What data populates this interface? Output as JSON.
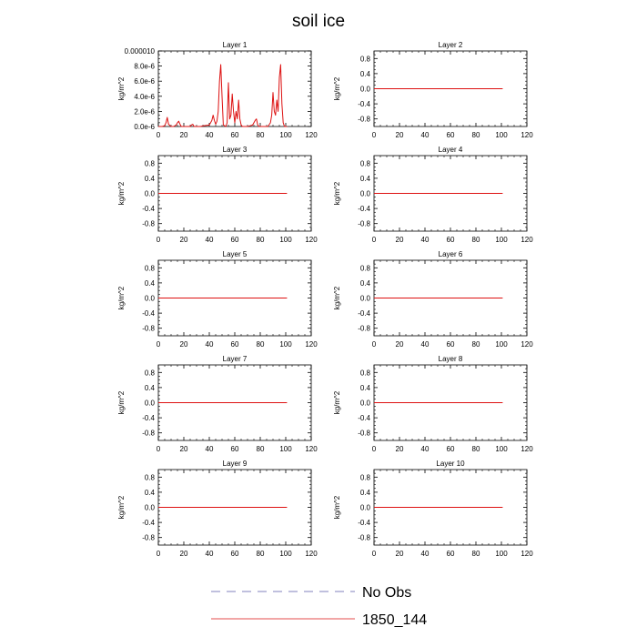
{
  "figure": {
    "title": "soil ice"
  },
  "legend": {
    "entries": [
      {
        "label": "No Obs",
        "color": "#5a5aa8",
        "style": "dashed"
      },
      {
        "label": "1850_144",
        "color": "#dd1111",
        "style": "solid"
      }
    ]
  },
  "chart_data": [
    {
      "type": "line",
      "title": "Layer 1",
      "ylabel": "kg/m^2",
      "xlim": [
        0,
        120
      ],
      "ylim": [
        0,
        1e-05
      ],
      "xticks": [
        0,
        20,
        40,
        60,
        80,
        100,
        120
      ],
      "yticks": [
        0,
        2e-06,
        4e-06,
        6e-06,
        8e-06,
        1e-05
      ],
      "ytick_labels": [
        "0.0e-6",
        "2.0e-6",
        "4.0e-6",
        "6.0e-6",
        "8.0e-6",
        "0.000010"
      ],
      "series": [
        {
          "name": "1850_144",
          "color": "#dd1111",
          "x": [
            0,
            3,
            5,
            6,
            7,
            8,
            10,
            12,
            14,
            15,
            16,
            17,
            18,
            20,
            22,
            25,
            26,
            27,
            28,
            30,
            33,
            36,
            40,
            42,
            43,
            44,
            45,
            46,
            47,
            48,
            49,
            50,
            51,
            53,
            54,
            55,
            56,
            57,
            58,
            59,
            60,
            61,
            62,
            63,
            64,
            65,
            66,
            67,
            68,
            70,
            72,
            74,
            76,
            77,
            78,
            79,
            80,
            82,
            84,
            86,
            88,
            89,
            90,
            91,
            92,
            93,
            94,
            95,
            96,
            97,
            98,
            99,
            100,
            101
          ],
          "y": [
            0,
            0,
            1e-07,
            5e-07,
            1.2e-06,
            3e-07,
            0,
            0,
            2e-07,
            5e-07,
            7e-07,
            3e-07,
            0,
            0,
            0,
            0,
            2e-07,
            3e-07,
            0,
            0,
            0,
            1e-07,
            2e-07,
            8e-07,
            1.5e-06,
            8e-07,
            3e-07,
            7e-07,
            2e-06,
            6e-06,
            8.2e-06,
            4e-06,
            2e-07,
            0,
            5e-07,
            5.8e-06,
            1e-06,
            1.5e-06,
            4.3e-06,
            2e-06,
            5e-07,
            2e-06,
            1e-06,
            3.5e-06,
            1e-06,
            2e-07,
            0,
            0,
            0,
            0,
            1e-07,
            2e-07,
            8e-07,
            1e-06,
            2e-07,
            0,
            0,
            0,
            0,
            0,
            5e-07,
            1.5e-06,
            4.5e-06,
            2e-06,
            1.5e-06,
            3.5e-06,
            2e-06,
            6.5e-06,
            8.2e-06,
            3e-06,
            5e-07,
            0,
            0,
            0
          ]
        }
      ]
    },
    {
      "type": "line",
      "title": "Layer 2",
      "ylabel": "kg/m^2",
      "xlim": [
        0,
        120
      ],
      "ylim": [
        -1,
        1
      ],
      "xticks": [
        0,
        20,
        40,
        60,
        80,
        100,
        120
      ],
      "yticks": [
        -0.8,
        -0.4,
        0,
        0.4,
        0.8
      ],
      "ytick_labels": [
        "-0.8",
        "-0.4",
        "0.0",
        "0.4",
        "0.8"
      ],
      "series": [
        {
          "name": "1850_144",
          "color": "#dd1111",
          "x": [
            0,
            101
          ],
          "y": [
            0,
            0
          ]
        }
      ]
    },
    {
      "type": "line",
      "title": "Layer 3",
      "ylabel": "kg/m^2",
      "xlim": [
        0,
        120
      ],
      "ylim": [
        -1,
        1
      ],
      "xticks": [
        0,
        20,
        40,
        60,
        80,
        100,
        120
      ],
      "yticks": [
        -0.8,
        -0.4,
        0,
        0.4,
        0.8
      ],
      "ytick_labels": [
        "-0.8",
        "-0.4",
        "0.0",
        "0.4",
        "0.8"
      ],
      "series": [
        {
          "name": "1850_144",
          "color": "#dd1111",
          "x": [
            0,
            101
          ],
          "y": [
            0,
            0
          ]
        }
      ]
    },
    {
      "type": "line",
      "title": "Layer 4",
      "ylabel": "kg/m^2",
      "xlim": [
        0,
        120
      ],
      "ylim": [
        -1,
        1
      ],
      "xticks": [
        0,
        20,
        40,
        60,
        80,
        100,
        120
      ],
      "yticks": [
        -0.8,
        -0.4,
        0,
        0.4,
        0.8
      ],
      "ytick_labels": [
        "-0.8",
        "-0.4",
        "0.0",
        "0.4",
        "0.8"
      ],
      "series": [
        {
          "name": "1850_144",
          "color": "#dd1111",
          "x": [
            0,
            101
          ],
          "y": [
            0,
            0
          ]
        }
      ]
    },
    {
      "type": "line",
      "title": "Layer 5",
      "ylabel": "kg/m^2",
      "xlim": [
        0,
        120
      ],
      "ylim": [
        -1,
        1
      ],
      "xticks": [
        0,
        20,
        40,
        60,
        80,
        100,
        120
      ],
      "yticks": [
        -0.8,
        -0.4,
        0,
        0.4,
        0.8
      ],
      "ytick_labels": [
        "-0.8",
        "-0.4",
        "0.0",
        "0.4",
        "0.8"
      ],
      "series": [
        {
          "name": "1850_144",
          "color": "#dd1111",
          "x": [
            0,
            101
          ],
          "y": [
            0,
            0
          ]
        }
      ]
    },
    {
      "type": "line",
      "title": "Layer 6",
      "ylabel": "kg/m^2",
      "xlim": [
        0,
        120
      ],
      "ylim": [
        -1,
        1
      ],
      "xticks": [
        0,
        20,
        40,
        60,
        80,
        100,
        120
      ],
      "yticks": [
        -0.8,
        -0.4,
        0,
        0.4,
        0.8
      ],
      "ytick_labels": [
        "-0.8",
        "-0.4",
        "0.0",
        "0.4",
        "0.8"
      ],
      "series": [
        {
          "name": "1850_144",
          "color": "#dd1111",
          "x": [
            0,
            101
          ],
          "y": [
            0,
            0
          ]
        }
      ]
    },
    {
      "type": "line",
      "title": "Layer 7",
      "ylabel": "kg/m^2",
      "xlim": [
        0,
        120
      ],
      "ylim": [
        -1,
        1
      ],
      "xticks": [
        0,
        20,
        40,
        60,
        80,
        100,
        120
      ],
      "yticks": [
        -0.8,
        -0.4,
        0,
        0.4,
        0.8
      ],
      "ytick_labels": [
        "-0.8",
        "-0.4",
        "0.0",
        "0.4",
        "0.8"
      ],
      "series": [
        {
          "name": "1850_144",
          "color": "#dd1111",
          "x": [
            0,
            101
          ],
          "y": [
            0,
            0
          ]
        }
      ]
    },
    {
      "type": "line",
      "title": "Layer 8",
      "ylabel": "kg/m^2",
      "xlim": [
        0,
        120
      ],
      "ylim": [
        -1,
        1
      ],
      "xticks": [
        0,
        20,
        40,
        60,
        80,
        100,
        120
      ],
      "yticks": [
        -0.8,
        -0.4,
        0,
        0.4,
        0.8
      ],
      "ytick_labels": [
        "-0.8",
        "-0.4",
        "0.0",
        "0.4",
        "0.8"
      ],
      "series": [
        {
          "name": "1850_144",
          "color": "#dd1111",
          "x": [
            0,
            101
          ],
          "y": [
            0,
            0
          ]
        }
      ]
    },
    {
      "type": "line",
      "title": "Layer 9",
      "ylabel": "kg/m^2",
      "xlim": [
        0,
        120
      ],
      "ylim": [
        -1,
        1
      ],
      "xticks": [
        0,
        20,
        40,
        60,
        80,
        100,
        120
      ],
      "yticks": [
        -0.8,
        -0.4,
        0,
        0.4,
        0.8
      ],
      "ytick_labels": [
        "-0.8",
        "-0.4",
        "0.0",
        "0.4",
        "0.8"
      ],
      "series": [
        {
          "name": "1850_144",
          "color": "#dd1111",
          "x": [
            0,
            101
          ],
          "y": [
            0,
            0
          ]
        }
      ]
    },
    {
      "type": "line",
      "title": "Layer 10",
      "ylabel": "kg/m^2",
      "xlim": [
        0,
        120
      ],
      "ylim": [
        -1,
        1
      ],
      "xticks": [
        0,
        20,
        40,
        60,
        80,
        100,
        120
      ],
      "yticks": [
        -0.8,
        -0.4,
        0,
        0.4,
        0.8
      ],
      "ytick_labels": [
        "-0.8",
        "-0.4",
        "0.0",
        "0.4",
        "0.8"
      ],
      "series": [
        {
          "name": "1850_144",
          "color": "#dd1111",
          "x": [
            0,
            101
          ],
          "y": [
            0,
            0
          ]
        }
      ]
    }
  ]
}
